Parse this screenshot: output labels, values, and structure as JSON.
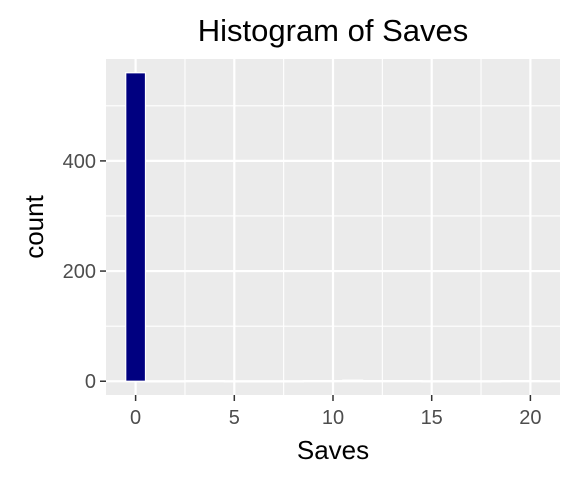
{
  "chart_data": {
    "type": "bar",
    "title": "Histogram of Saves",
    "xlabel": "Saves",
    "ylabel": "count",
    "xlim": [
      -1.5,
      21.5
    ],
    "ylim": [
      -25,
      585
    ],
    "xticks": [
      0,
      5,
      10,
      15,
      20
    ],
    "xtick_labels": [
      "0",
      "5",
      "10",
      "15",
      "20"
    ],
    "yticks": [
      0,
      200,
      400
    ],
    "ytick_labels": [
      "0",
      "200",
      "400"
    ],
    "bin_width": 1,
    "bins": [
      {
        "x": 0,
        "count": 560
      },
      {
        "x": 1,
        "count": 0
      },
      {
        "x": 2,
        "count": 0
      },
      {
        "x": 3,
        "count": 1
      },
      {
        "x": 4,
        "count": 1
      },
      {
        "x": 5,
        "count": 0
      },
      {
        "x": 6,
        "count": 0
      },
      {
        "x": 7,
        "count": 0
      },
      {
        "x": 8,
        "count": 0
      },
      {
        "x": 9,
        "count": 1
      },
      {
        "x": 10,
        "count": 1
      },
      {
        "x": 11,
        "count": 2
      },
      {
        "x": 12,
        "count": 1
      },
      {
        "x": 13,
        "count": 1
      },
      {
        "x": 14,
        "count": 1
      },
      {
        "x": 15,
        "count": 0
      },
      {
        "x": 16,
        "count": 0
      },
      {
        "x": 17,
        "count": 0
      },
      {
        "x": 18,
        "count": 0
      },
      {
        "x": 19,
        "count": 1
      },
      {
        "x": 20,
        "count": 1
      }
    ],
    "bar_color": "#000080",
    "bar_outline": "#ffffff",
    "panel_background": "#ebebeb",
    "grid": true,
    "grid_color": "#ffffff"
  }
}
